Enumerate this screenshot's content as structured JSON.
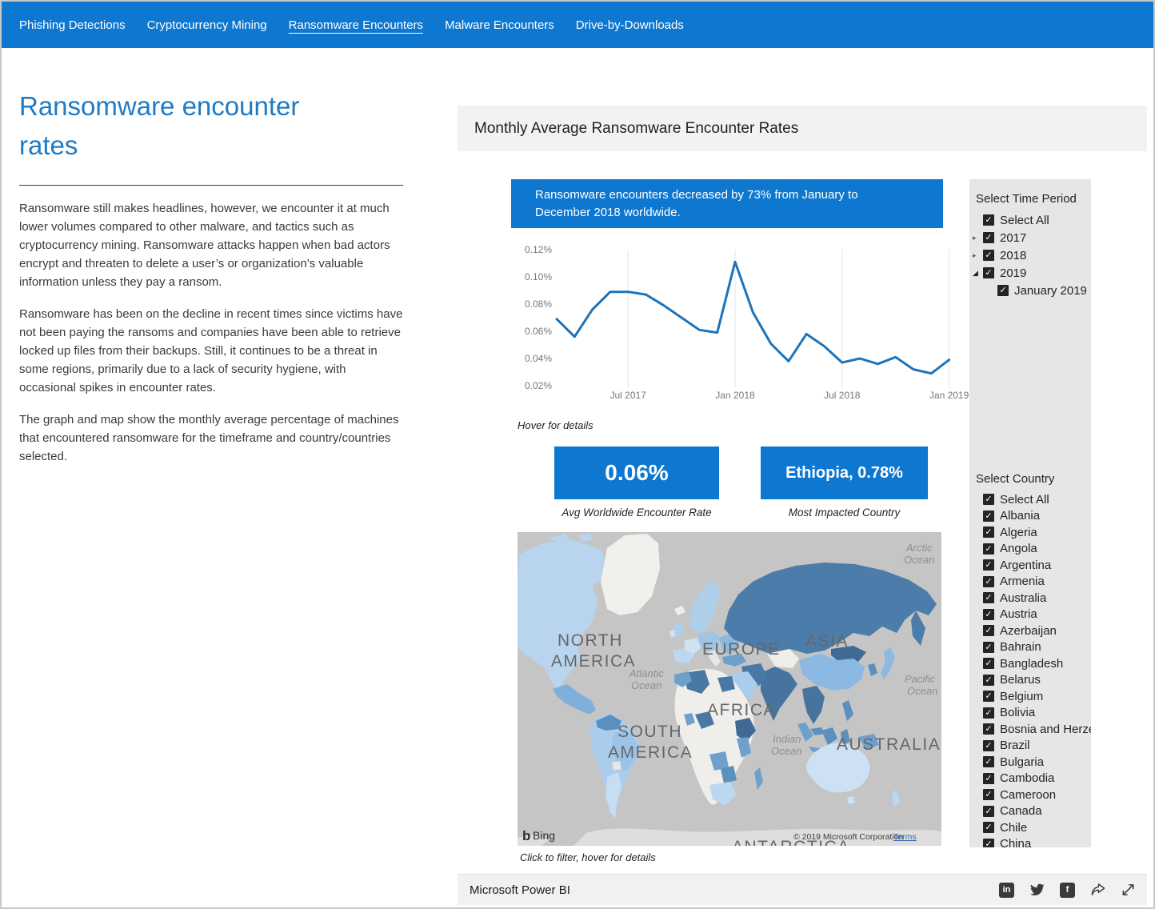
{
  "nav": {
    "items": [
      {
        "label": "Phishing Detections",
        "active": false
      },
      {
        "label": "Cryptocurrency Mining",
        "active": false
      },
      {
        "label": "Ransomware Encounters",
        "active": true
      },
      {
        "label": "Malware Encounters",
        "active": false
      },
      {
        "label": "Drive-by-Downloads",
        "active": false
      }
    ]
  },
  "intro": {
    "title": "Ransomware encounter rates",
    "paragraphs": [
      "Ransomware still makes headlines, however, we encounter it at much lower volumes compared to other malware, and tactics such as cryptocurrency mining. Ransomware attacks happen when bad actors encrypt and threaten to delete a user’s or organization’s valuable information unless they pay a ransom.",
      "Ransomware has been on the decline in recent times since victims have not been paying the ransoms and companies have been able to retrieve locked up files from their backups. Still, it continues to be a threat in some regions, primarily due to a lack of security hygiene, with occasional spikes in encounter rates.",
      "The graph and map show the monthly average percentage of machines that encountered ransomware for the timeframe and country/countries selected."
    ]
  },
  "report": {
    "header_title": "Monthly Average Ransomware Encounter Rates",
    "callout": "Ransomware encounters decreased by 73% from January to December 2018 worldwide.",
    "hover_hint": "Hover for details",
    "kpis": [
      {
        "value": "0.06%",
        "caption": "Avg Worldwide Encounter Rate"
      },
      {
        "value": "Ethiopia, 0.78%",
        "caption": "Most Impacted Country"
      }
    ],
    "map_hint": "Click to filter, hover for details"
  },
  "chart_data": {
    "type": "line",
    "title": "Monthly Average Ransomware Encounter Rates",
    "x": [
      "Mar 2017",
      "Apr 2017",
      "May 2017",
      "Jun 2017",
      "Jul 2017",
      "Aug 2017",
      "Sep 2017",
      "Oct 2017",
      "Nov 2017",
      "Dec 2017",
      "Jan 2018",
      "Feb 2018",
      "Mar 2018",
      "Apr 2018",
      "May 2018",
      "Jun 2018",
      "Jul 2018",
      "Aug 2018",
      "Sep 2018",
      "Oct 2018",
      "Nov 2018",
      "Dec 2018",
      "Jan 2019"
    ],
    "values": [
      0.069,
      0.056,
      0.076,
      0.089,
      0.089,
      0.087,
      0.079,
      0.07,
      0.061,
      0.059,
      0.111,
      0.074,
      0.051,
      0.038,
      0.058,
      0.049,
      0.037,
      0.04,
      0.036,
      0.041,
      0.032,
      0.029,
      0.039
    ],
    "unit": "percent",
    "ylim": [
      0.02,
      0.12
    ],
    "y_ticks": [
      "0.12%",
      "0.10%",
      "0.08%",
      "0.06%",
      "0.04%",
      "0.02%"
    ],
    "x_ticks": [
      {
        "label": "Jul 2017",
        "index": 4
      },
      {
        "label": "Jan 2018",
        "index": 10
      },
      {
        "label": "Jul 2018",
        "index": 16
      },
      {
        "label": "Jan 2019",
        "index": 22
      }
    ],
    "grid": "vertical-only",
    "legend": "none",
    "line_color": "#1e73b9"
  },
  "map": {
    "continent_labels": [
      "NORTH AMERICA",
      "SOUTH AMERICA",
      "EUROPE",
      "ASIA",
      "AFRICA",
      "AUSTRALIA",
      "ANTARCTICA"
    ],
    "ocean_labels": [
      "Arctic Ocean",
      "Atlantic Ocean",
      "Pacific Ocean",
      "Indian Ocean"
    ],
    "logo": "Bing",
    "copyright": "© 2019 Microsoft Corporation",
    "terms_label": "Terms"
  },
  "slicers": {
    "time_period": {
      "title": "Select Time Period",
      "items": [
        {
          "label": "Select All",
          "checked": true,
          "expander": null,
          "indent": 0
        },
        {
          "label": "2017",
          "checked": true,
          "expander": "collapsed",
          "indent": 0
        },
        {
          "label": "2018",
          "checked": true,
          "expander": "collapsed",
          "indent": 0
        },
        {
          "label": "2019",
          "checked": true,
          "expander": "expanded",
          "indent": 0
        },
        {
          "label": "January 2019",
          "checked": true,
          "expander": null,
          "indent": 1
        }
      ]
    },
    "country": {
      "title": "Select Country",
      "items": [
        "Select All",
        "Albania",
        "Algeria",
        "Angola",
        "Argentina",
        "Armenia",
        "Australia",
        "Austria",
        "Azerbaijan",
        "Bahrain",
        "Bangladesh",
        "Belarus",
        "Belgium",
        "Bolivia",
        "Bosnia and Herzeg",
        "Brazil",
        "Bulgaria",
        "Cambodia",
        "Cameroon",
        "Canada",
        "Chile",
        "China"
      ],
      "all_checked": true
    }
  },
  "footer": {
    "brand": "Microsoft Power BI",
    "icons": [
      {
        "name": "linkedin-icon",
        "glyph": "in"
      },
      {
        "name": "twitter-icon",
        "glyph": ""
      },
      {
        "name": "facebook-icon",
        "glyph": "f"
      },
      {
        "name": "share-icon",
        "glyph": ""
      },
      {
        "name": "fullscreen-icon",
        "glyph": ""
      }
    ]
  },
  "colors": {
    "accent_blue": "#0e77d0",
    "title_blue": "#1f7ac4",
    "chart_line": "#1e73b9",
    "sidebar_bg": "#e6e6e6",
    "map_ocean": "#c5c5c5",
    "map_dark_country": "#4c7ca9",
    "map_light_country": "#b9d4ee"
  }
}
